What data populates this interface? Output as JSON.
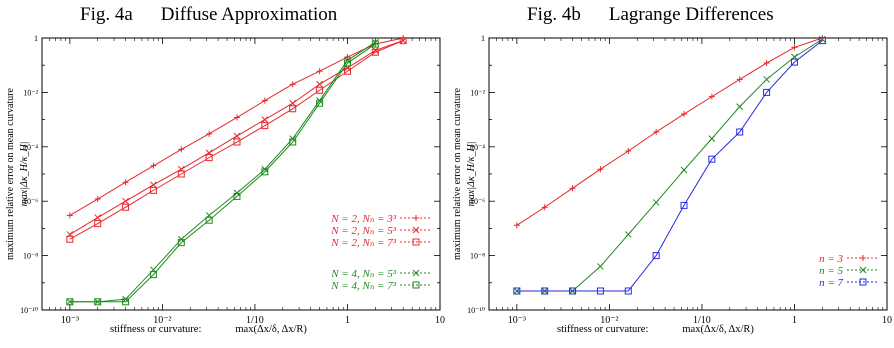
{
  "figures": [
    {
      "fig_label": "Fig. 4a",
      "title": "Diffuse Approximation",
      "ylabel_line1": "maximum relative error on mean curvature",
      "ylabel_line2": "max|Δκ_H/κ_H|",
      "xlabel_prefix": "stiffness or curvature:",
      "xlabel_expr": "max(Δx/δ, Δx/R)"
    },
    {
      "fig_label": "Fig. 4b",
      "title": "Lagrange Differences",
      "ylabel_line1": "maximum relative error on mean curvature",
      "ylabel_line2": "max|Δκ_H/κ_H|",
      "xlabel_prefix": "stiffness or curvature:",
      "xlabel_expr": "max(Δx/δ, Δx/R)"
    }
  ],
  "chart_data": [
    {
      "type": "line",
      "title": "Diffuse Approximation",
      "xlabel": "stiffness or curvature:   max(Δx/δ, Δx/R)",
      "ylabel": "maximum relative error on mean curvature max|Δκ_H/κ_H|",
      "x_scale": "log",
      "y_scale": "log",
      "xlim": [
        0.0005,
        10
      ],
      "ylim": [
        1e-10,
        1
      ],
      "x_ticks": [
        0.001,
        0.01,
        0.1,
        1,
        10
      ],
      "x_tick_labels": [
        "10⁻³",
        "10⁻²",
        "1/10",
        "1",
        "10"
      ],
      "y_ticks": [
        1e-10,
        1e-08,
        1e-06,
        0.0001,
        0.01,
        1
      ],
      "y_tick_labels": [
        "10⁻¹⁰",
        "10⁻⁸",
        "10⁻⁶",
        "10⁻⁴",
        "10⁻²",
        "1"
      ],
      "legend_position": "right",
      "series": [
        {
          "name": "N = 2, Nₙ = 3³",
          "color": "#e8262b",
          "marker": "plus",
          "x": [
            0.001,
            0.002,
            0.004,
            0.008,
            0.016,
            0.032,
            0.064,
            0.128,
            0.256,
            0.5,
            1.0,
            2.0,
            4.0
          ],
          "y": [
            3e-07,
            1.2e-06,
            5e-06,
            2e-05,
            8e-05,
            0.0003,
            0.0012,
            0.005,
            0.02,
            0.06,
            0.2,
            0.6,
            1.0
          ]
        },
        {
          "name": "N = 2, Nₙ = 5³",
          "color": "#e8262b",
          "marker": "cross",
          "x": [
            0.001,
            0.002,
            0.004,
            0.008,
            0.016,
            0.032,
            0.064,
            0.128,
            0.256,
            0.5,
            1.0,
            2.0,
            4.0
          ],
          "y": [
            6e-08,
            2.5e-07,
            1e-06,
            4e-06,
            1.5e-05,
            6e-05,
            0.00025,
            0.001,
            0.004,
            0.02,
            0.08,
            0.35,
            0.8
          ]
        },
        {
          "name": "N = 2, Nₙ = 7³",
          "color": "#e8262b",
          "marker": "square",
          "x": [
            0.001,
            0.002,
            0.004,
            0.008,
            0.016,
            0.032,
            0.064,
            0.128,
            0.256,
            0.5,
            1.0,
            2.0,
            4.0
          ],
          "y": [
            4e-08,
            1.5e-07,
            6e-07,
            2.5e-06,
            1e-05,
            4e-05,
            0.00015,
            0.0006,
            0.0025,
            0.012,
            0.06,
            0.3,
            0.8
          ]
        },
        {
          "name": "N = 4, Nₙ = 5³",
          "color": "#1f8a1f",
          "marker": "cross",
          "x": [
            0.001,
            0.002,
            0.004,
            0.008,
            0.016,
            0.032,
            0.064,
            0.128,
            0.256,
            0.5,
            1.0,
            2.0
          ],
          "y": [
            2e-10,
            2e-10,
            2.5e-10,
            3e-09,
            4e-08,
            3e-07,
            2e-06,
            1.5e-05,
            0.0002,
            0.005,
            0.15,
            0.7
          ]
        },
        {
          "name": "N = 4, Nₙ = 7³",
          "color": "#1f8a1f",
          "marker": "square",
          "x": [
            0.001,
            0.002,
            0.004,
            0.008,
            0.016,
            0.032,
            0.064,
            0.128,
            0.256,
            0.5,
            1.0,
            2.0
          ],
          "y": [
            2e-10,
            2e-10,
            2e-10,
            2e-09,
            3e-08,
            2e-07,
            1.5e-06,
            1.2e-05,
            0.00015,
            0.004,
            0.12,
            0.6
          ]
        }
      ]
    },
    {
      "type": "line",
      "title": "Lagrange Differences",
      "xlabel": "stiffness or curvature:   max(Δx/δ, Δx/R)",
      "ylabel": "maximum relative error on mean curvature max|Δκ_H/κ_H|",
      "x_scale": "log",
      "y_scale": "log",
      "xlim": [
        0.0005,
        10
      ],
      "ylim": [
        1e-10,
        1
      ],
      "x_ticks": [
        0.001,
        0.01,
        0.1,
        1,
        10
      ],
      "x_tick_labels": [
        "10⁻³",
        "10⁻²",
        "1/10",
        "1",
        "10"
      ],
      "y_ticks": [
        1e-10,
        1e-08,
        1e-06,
        0.0001,
        0.01,
        1
      ],
      "y_tick_labels": [
        "10⁻¹⁰",
        "10⁻⁸",
        "10⁻⁶",
        "10⁻⁴",
        "10⁻²",
        "1"
      ],
      "legend_position": "right",
      "series": [
        {
          "name": "n = 3",
          "color": "#e8262b",
          "marker": "plus",
          "x": [
            0.001,
            0.002,
            0.004,
            0.008,
            0.016,
            0.032,
            0.064,
            0.128,
            0.256,
            0.5,
            1.0,
            2.0
          ],
          "y": [
            1.3e-07,
            6e-07,
            3e-06,
            1.5e-05,
            7e-05,
            0.00035,
            0.0016,
            0.007,
            0.03,
            0.12,
            0.45,
            1.0
          ]
        },
        {
          "name": "n = 5",
          "color": "#1f8a1f",
          "marker": "cross",
          "x": [
            0.001,
            0.002,
            0.004,
            0.008,
            0.016,
            0.032,
            0.064,
            0.128,
            0.256,
            0.5,
            1.0,
            2.0
          ],
          "y": [
            5e-10,
            5e-10,
            5e-10,
            4e-09,
            6e-08,
            9e-07,
            1.4e-05,
            0.0002,
            0.003,
            0.03,
            0.2,
            0.9
          ]
        },
        {
          "name": "n = 7",
          "color": "#2a2ae0",
          "marker": "square",
          "x": [
            0.001,
            0.002,
            0.004,
            0.008,
            0.016,
            0.032,
            0.064,
            0.128,
            0.256,
            0.5,
            1.0,
            2.0
          ],
          "y": [
            5e-10,
            5e-10,
            5e-10,
            5e-10,
            5e-10,
            1e-08,
            7e-07,
            3.5e-05,
            0.00035,
            0.01,
            0.13,
            0.8
          ]
        }
      ]
    }
  ]
}
